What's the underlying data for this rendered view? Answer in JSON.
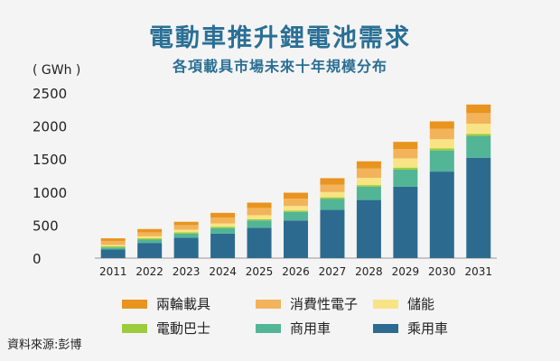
{
  "title": "電動車推升鋰電池需求",
  "subtitle": "各項載具市場未來十年規模分布",
  "source": "資料來源:彭博",
  "chart_data": {
    "type": "bar",
    "stacked": true,
    "unit_label": "( GWh )",
    "ylim": [
      0,
      2500
    ],
    "yticks": [
      0,
      500,
      1000,
      1500,
      2000,
      2500
    ],
    "categories": [
      "2011",
      "2022",
      "2023",
      "2024",
      "2025",
      "2026",
      "2027",
      "2028",
      "2029",
      "2030",
      "2031"
    ],
    "series": [
      {
        "name": "乘用車",
        "color": "#2c6b8f",
        "values": [
          130,
          230,
          310,
          370,
          460,
          570,
          730,
          880,
          1080,
          1310,
          1520
        ]
      },
      {
        "name": "商用車",
        "color": "#52b596",
        "values": [
          30,
          50,
          60,
          85,
          110,
          130,
          165,
          200,
          260,
          320,
          330
        ]
      },
      {
        "name": "電動巴士",
        "color": "#9ccc3b",
        "values": [
          20,
          20,
          20,
          20,
          20,
          20,
          25,
          25,
          30,
          30,
          30
        ]
      },
      {
        "name": "儲能",
        "color": "#f8e485",
        "values": [
          20,
          30,
          40,
          50,
          60,
          70,
          80,
          110,
          140,
          140,
          155
        ]
      },
      {
        "name": "消費性電子",
        "color": "#f2b35a",
        "values": [
          60,
          60,
          70,
          90,
          110,
          110,
          110,
          140,
          140,
          160,
          160
        ]
      },
      {
        "name": "兩輪載具",
        "color": "#e8941f",
        "values": [
          40,
          50,
          50,
          70,
          80,
          90,
          100,
          110,
          110,
          110,
          130
        ]
      }
    ],
    "legend_order": [
      "兩輪載具",
      "消費性電子",
      "儲能",
      "電動巴士",
      "商用車",
      "乘用車"
    ]
  }
}
